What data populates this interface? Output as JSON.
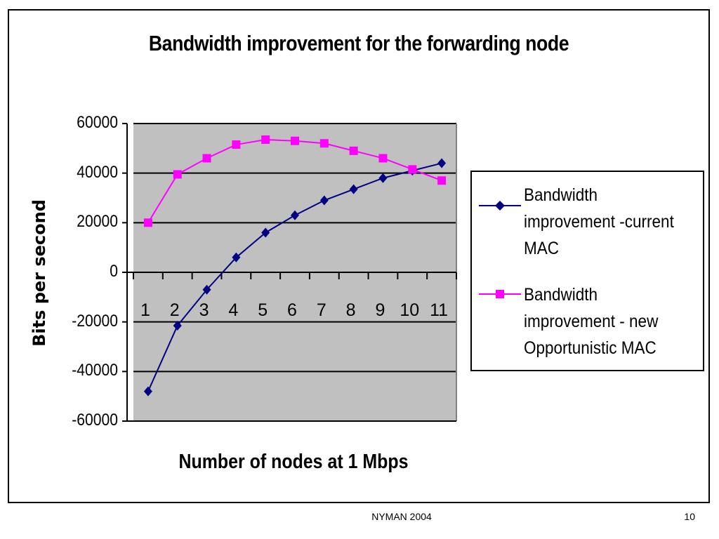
{
  "footer": {
    "left": "NYMAN 2004",
    "page": "10"
  },
  "colors": {
    "plot_bg": "#c0c0c0",
    "series1": "#000080",
    "series2": "#ff00ff"
  },
  "chart_data": {
    "type": "line",
    "title": "Bandwidth improvement for the forwarding node",
    "xlabel": "Number of nodes at 1 Mbps",
    "ylabel": "Bits per second",
    "categories": [
      "1",
      "2",
      "3",
      "4",
      "5",
      "6",
      "7",
      "8",
      "9",
      "10",
      "11"
    ],
    "ylim": [
      -60000,
      60000
    ],
    "yticks": [
      60000,
      40000,
      20000,
      0,
      -20000,
      -40000,
      -60000
    ],
    "grid": true,
    "legend_position": "right",
    "series": [
      {
        "name": "Bandwidth improvement -current MAC",
        "name_lines": [
          "Bandwidth",
          "improvement -current",
          "MAC"
        ],
        "marker": "diamond",
        "values": [
          -48000,
          -21500,
          -7000,
          6000,
          16000,
          23000,
          29000,
          33500,
          38000,
          41000,
          44000
        ]
      },
      {
        "name": "Bandwidth improvement - new Opportunistic MAC",
        "name_lines": [
          "Bandwidth",
          "improvement - new",
          "Opportunistic MAC"
        ],
        "marker": "square",
        "values": [
          20000,
          39500,
          46000,
          51500,
          53500,
          53000,
          52000,
          49000,
          46000,
          41500,
          37000
        ]
      }
    ]
  }
}
